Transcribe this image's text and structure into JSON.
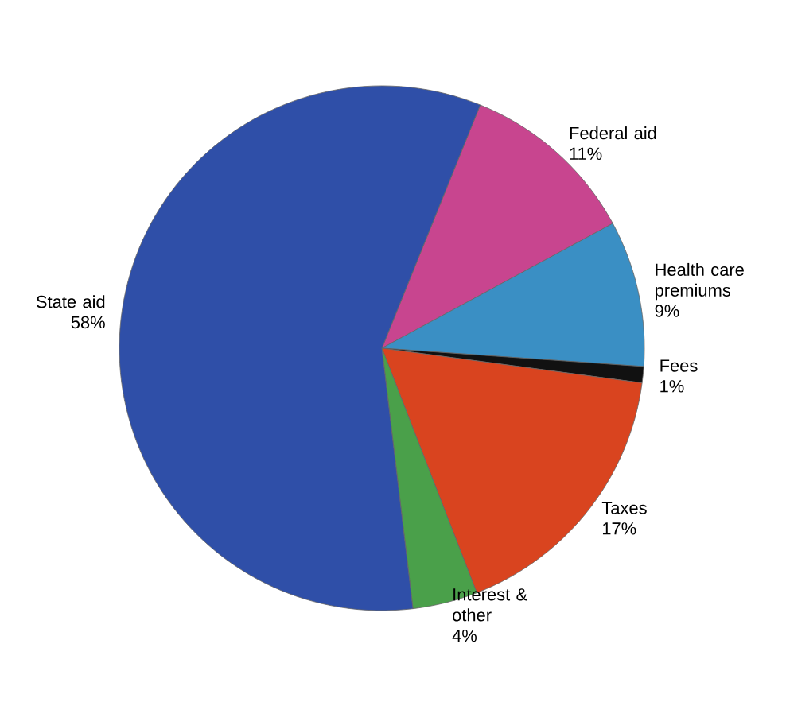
{
  "chart_data": {
    "type": "pie",
    "categories": [
      "Federal aid",
      "Health care premiums",
      "Fees",
      "Taxes",
      "Interest & other",
      "State aid"
    ],
    "values": [
      11,
      9,
      1,
      17,
      4,
      58
    ],
    "value_labels": [
      "11%",
      "9%",
      "1%",
      "17%",
      "4%",
      "58%"
    ],
    "colors": [
      "#c8458f",
      "#3a8fc4",
      "#111111",
      "#d9441f",
      "#4aa04a",
      "#2f4fa8"
    ]
  }
}
